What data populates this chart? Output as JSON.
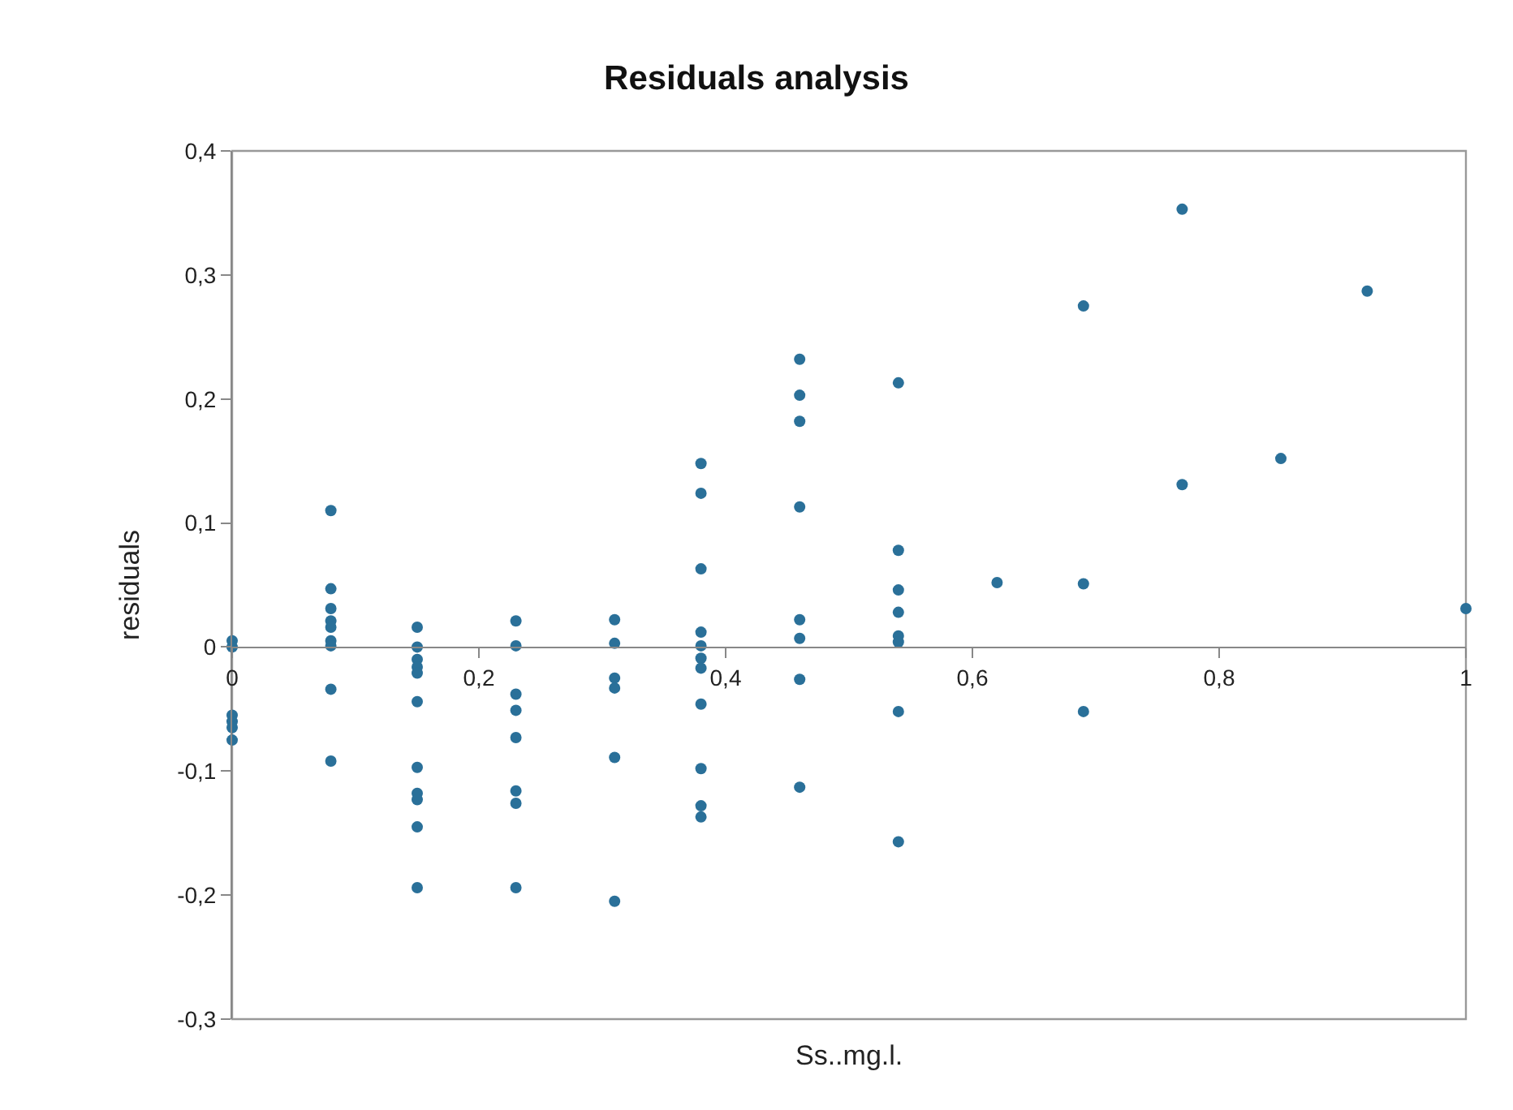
{
  "chart_data": {
    "type": "scatter",
    "title": "Residuals analysis",
    "xlabel": "Ss..mg.l.",
    "ylabel": "residuals",
    "xlim": [
      0,
      1
    ],
    "xticks": [
      {
        "value": 0,
        "label": "0"
      },
      {
        "value": 0.2,
        "label": "0,2"
      },
      {
        "value": 0.4,
        "label": "0,4"
      },
      {
        "value": 0.6,
        "label": "0,6"
      },
      {
        "value": 0.8,
        "label": "0,8"
      },
      {
        "value": 1,
        "label": "1"
      }
    ],
    "ylim": [
      -0.3,
      0.4
    ],
    "yticks": [
      {
        "value": -0.3,
        "label": "-0,3"
      },
      {
        "value": -0.2,
        "label": "-0,2"
      },
      {
        "value": -0.1,
        "label": "-0,1"
      },
      {
        "value": 0,
        "label": "0"
      },
      {
        "value": 0.1,
        "label": "0,1"
      },
      {
        "value": 0.2,
        "label": "0,2"
      },
      {
        "value": 0.3,
        "label": "0,3"
      },
      {
        "value": 0.4,
        "label": "0,4"
      }
    ],
    "grid": false,
    "series": [
      {
        "color": "#2a7099",
        "x": [
          0,
          0,
          0,
          0,
          0,
          0,
          0.08,
          0.08,
          0.08,
          0.08,
          0.08,
          0.08,
          0.08,
          0.08,
          0.08,
          0.15,
          0.15,
          0.15,
          0.15,
          0.15,
          0.15,
          0.15,
          0.15,
          0.15,
          0.15,
          0.15,
          0.23,
          0.23,
          0.23,
          0.23,
          0.23,
          0.23,
          0.23,
          0.23,
          0.31,
          0.31,
          0.31,
          0.31,
          0.31,
          0.31,
          0.38,
          0.38,
          0.38,
          0.38,
          0.38,
          0.38,
          0.38,
          0.38,
          0.38,
          0.38,
          0.38,
          0.46,
          0.46,
          0.46,
          0.46,
          0.46,
          0.46,
          0.46,
          0.46,
          0.54,
          0.54,
          0.54,
          0.54,
          0.54,
          0.54,
          0.54,
          0.54,
          0.62,
          0.69,
          0.69,
          0.69,
          0.77,
          0.77,
          0.85,
          0.92,
          1.0
        ],
        "values": [
          0.005,
          0.0,
          -0.055,
          -0.06,
          -0.065,
          -0.075,
          0.11,
          0.047,
          0.031,
          0.021,
          0.016,
          0.005,
          0.001,
          -0.034,
          -0.092,
          0.016,
          0.0,
          -0.01,
          -0.016,
          -0.021,
          -0.044,
          -0.097,
          -0.118,
          -0.123,
          -0.145,
          -0.194,
          0.021,
          0.001,
          -0.038,
          -0.051,
          -0.073,
          -0.116,
          -0.126,
          -0.194,
          0.022,
          0.003,
          -0.025,
          -0.033,
          -0.089,
          -0.205,
          0.148,
          0.124,
          0.063,
          0.012,
          0.001,
          -0.009,
          -0.017,
          -0.046,
          -0.098,
          -0.128,
          -0.137,
          0.232,
          0.203,
          0.182,
          0.113,
          0.022,
          0.007,
          -0.026,
          -0.113,
          0.213,
          0.078,
          0.046,
          0.028,
          0.009,
          0.004,
          -0.052,
          -0.157,
          0.052,
          0.275,
          0.051,
          -0.052,
          0.353,
          0.131,
          0.152,
          0.287,
          0.031
        ]
      }
    ]
  }
}
